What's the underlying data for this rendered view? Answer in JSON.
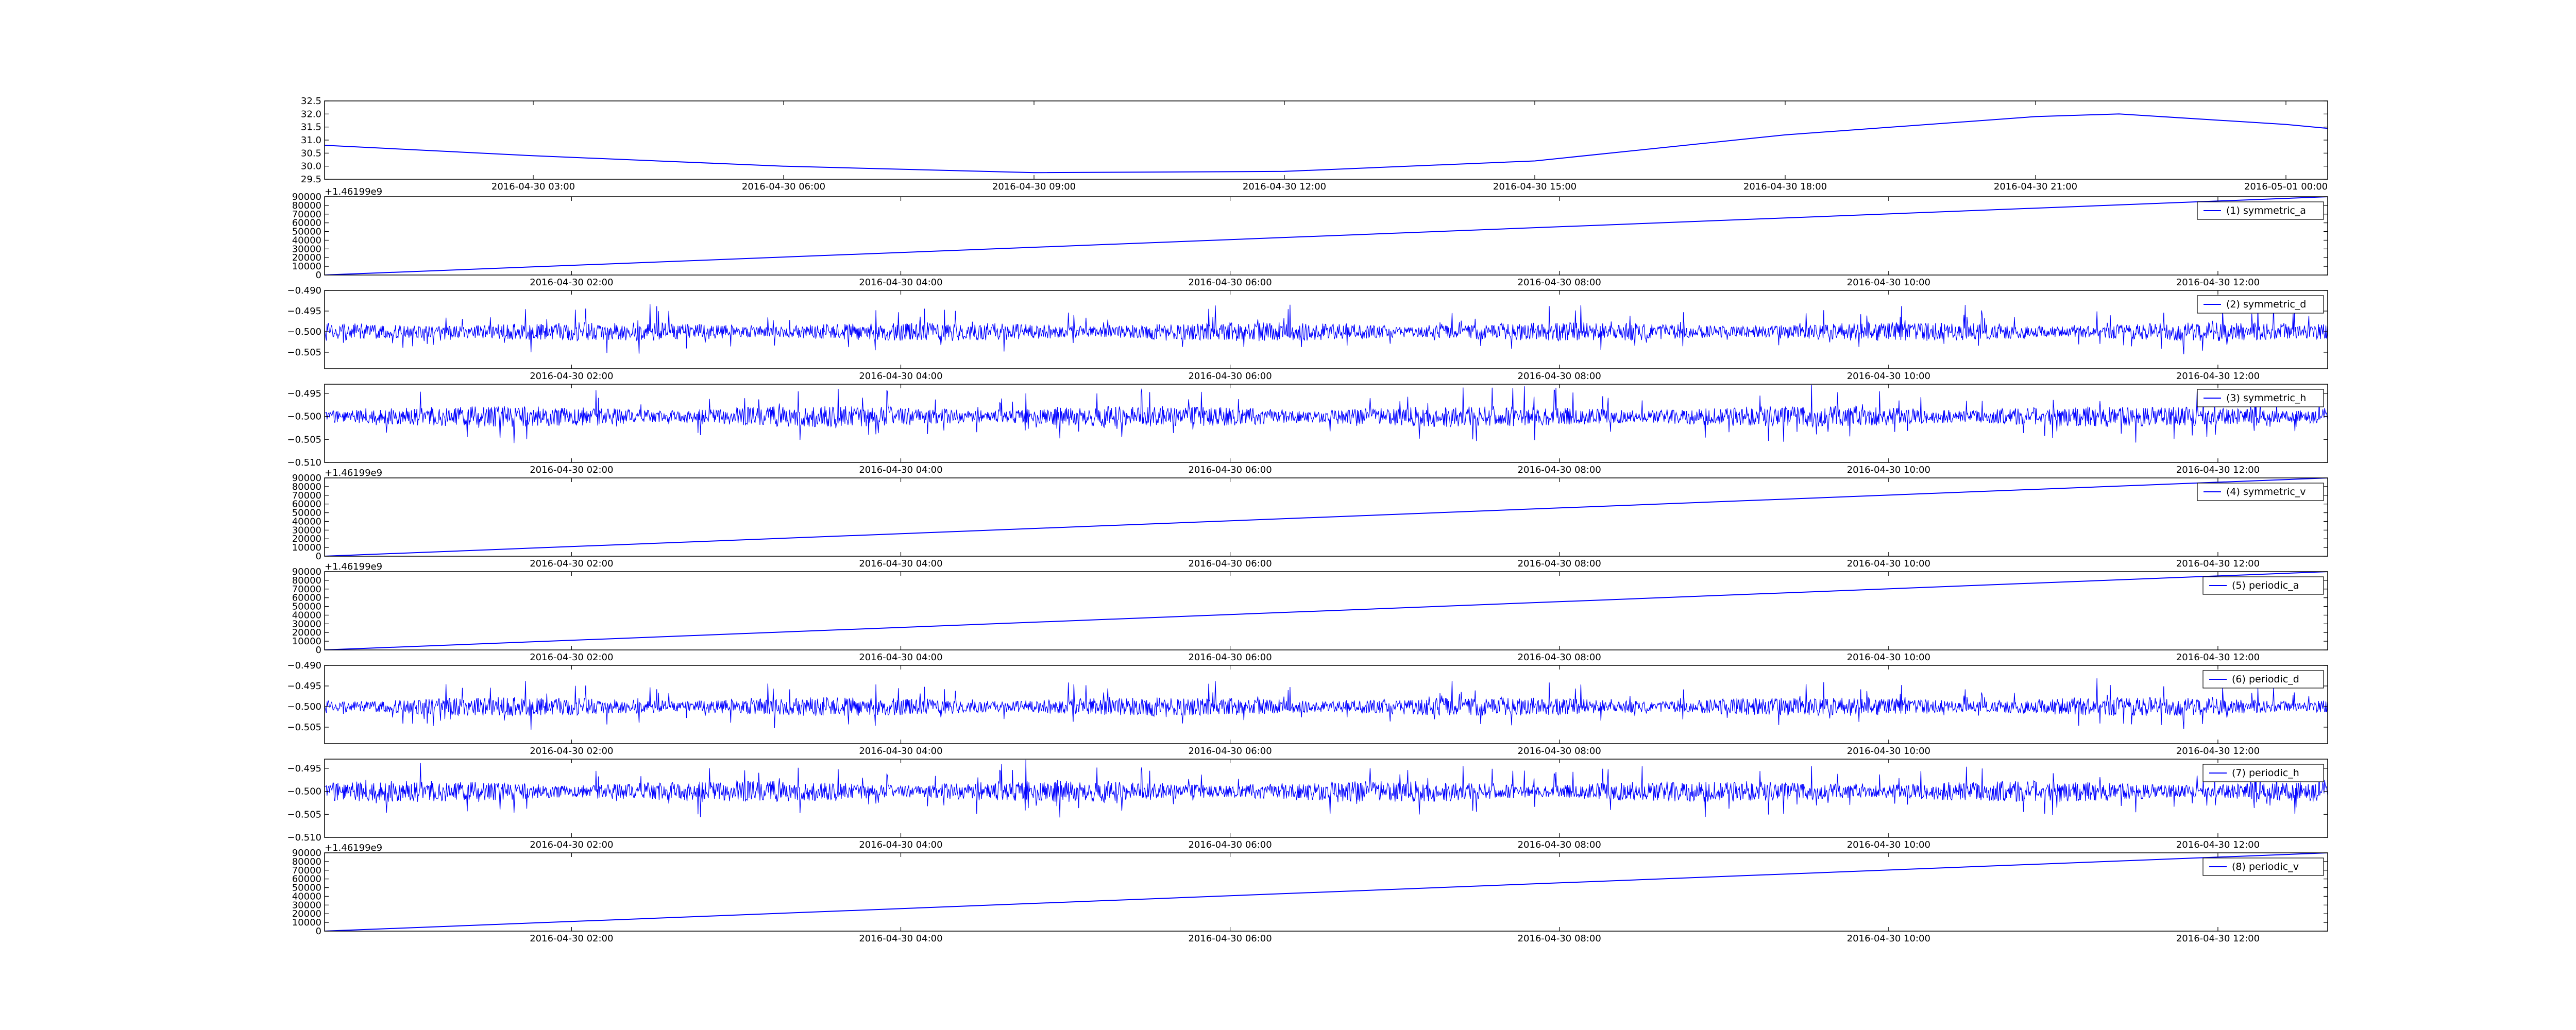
{
  "figure": {
    "background": "#ffffff",
    "line_color": "#0000ff",
    "axis_color": "#000000"
  },
  "chart_data": [
    {
      "type": "line",
      "series": [
        {
          "values": [
            30.8,
            30.4,
            30.0,
            29.75,
            29.8,
            30.2,
            31.2,
            31.9,
            32.0,
            31.6,
            31.45
          ]
        }
      ],
      "x": [
        "2016-04-30 00:30",
        "2016-04-30 03:00",
        "2016-04-30 06:00",
        "2016-04-30 09:00",
        "2016-04-30 12:00",
        "2016-04-30 15:00",
        "2016-04-30 18:00",
        "2016-04-30 21:00",
        "2016-04-30 22:00",
        "2016-05-01 00:00",
        "2016-05-01 00:30"
      ],
      "xlim": [
        "2016-04-30 00:30",
        "2016-05-01 00:30"
      ],
      "xticks": [
        "2016-04-30 03:00",
        "2016-04-30 06:00",
        "2016-04-30 09:00",
        "2016-04-30 12:00",
        "2016-04-30 15:00",
        "2016-04-30 18:00",
        "2016-04-30 21:00",
        "2016-05-01 00:00"
      ],
      "ylim": [
        29.5,
        32.5
      ],
      "yticks": [
        "29.5",
        "30.0",
        "30.5",
        "31.0",
        "31.5",
        "32.0",
        "32.5"
      ],
      "grid": false
    },
    {
      "type": "line",
      "offset_label": "+1.46199e9",
      "series": [
        {
          "name": "(1) symmetric_a",
          "x": [
            "2016-04-30 00:30",
            "2016-04-30 12:40"
          ],
          "values": [
            0,
            90000
          ]
        }
      ],
      "xlim": [
        "2016-04-30 00:30",
        "2016-04-30 12:40"
      ],
      "xticks": [
        "2016-04-30 02:00",
        "2016-04-30 04:00",
        "2016-04-30 06:00",
        "2016-04-30 08:00",
        "2016-04-30 10:00",
        "2016-04-30 12:00"
      ],
      "ylim": [
        0,
        90000
      ],
      "yticks": [
        "0",
        "10000",
        "20000",
        "30000",
        "40000",
        "50000",
        "60000",
        "70000",
        "80000",
        "90000"
      ],
      "legend": "top-right",
      "grid": false
    },
    {
      "type": "line",
      "series": [
        {
          "name": "(2) symmetric_d",
          "mean": -0.5,
          "amplitude": 0.0065
        }
      ],
      "xlim": [
        "2016-04-30 00:30",
        "2016-04-30 12:40"
      ],
      "xticks": [
        "2016-04-30 02:00",
        "2016-04-30 04:00",
        "2016-04-30 06:00",
        "2016-04-30 08:00",
        "2016-04-30 10:00",
        "2016-04-30 12:00"
      ],
      "ylim": [
        -0.509,
        -0.49
      ],
      "yticks": [
        "−0.505",
        "−0.500",
        "−0.495",
        "−0.490"
      ],
      "legend": "top-right",
      "grid": false
    },
    {
      "type": "line",
      "series": [
        {
          "name": "(3) symmetric_h",
          "mean": -0.5,
          "amplitude": 0.0065
        }
      ],
      "xlim": [
        "2016-04-30 00:30",
        "2016-04-30 12:40"
      ],
      "xticks": [
        "2016-04-30 02:00",
        "2016-04-30 04:00",
        "2016-04-30 06:00",
        "2016-04-30 08:00",
        "2016-04-30 10:00",
        "2016-04-30 12:00"
      ],
      "ylim": [
        -0.51,
        -0.493
      ],
      "yticks": [
        "−0.510",
        "−0.505",
        "−0.500",
        "−0.495"
      ],
      "legend": "top-right",
      "grid": false
    },
    {
      "type": "line",
      "offset_label": "+1.46199e9",
      "series": [
        {
          "name": "(4) symmetric_v",
          "x": [
            "2016-04-30 00:30",
            "2016-04-30 12:40"
          ],
          "values": [
            0,
            90000
          ]
        }
      ],
      "xlim": [
        "2016-04-30 00:30",
        "2016-04-30 12:40"
      ],
      "xticks": [
        "2016-04-30 02:00",
        "2016-04-30 04:00",
        "2016-04-30 06:00",
        "2016-04-30 08:00",
        "2016-04-30 10:00",
        "2016-04-30 12:00"
      ],
      "ylim": [
        0,
        90000
      ],
      "yticks": [
        "0",
        "10000",
        "20000",
        "30000",
        "40000",
        "50000",
        "60000",
        "70000",
        "80000",
        "90000"
      ],
      "legend": "top-right",
      "grid": false
    },
    {
      "type": "line",
      "offset_label": "+1.46199e9",
      "series": [
        {
          "name": "(5) periodic_a",
          "x": [
            "2016-04-30 00:30",
            "2016-04-30 12:40"
          ],
          "values": [
            0,
            90000
          ]
        }
      ],
      "xlim": [
        "2016-04-30 00:30",
        "2016-04-30 12:40"
      ],
      "xticks": [
        "2016-04-30 02:00",
        "2016-04-30 04:00",
        "2016-04-30 06:00",
        "2016-04-30 08:00",
        "2016-04-30 10:00",
        "2016-04-30 12:00"
      ],
      "ylim": [
        0,
        90000
      ],
      "yticks": [
        "0",
        "10000",
        "20000",
        "30000",
        "40000",
        "50000",
        "60000",
        "70000",
        "80000",
        "90000"
      ],
      "legend": "top-right",
      "grid": false
    },
    {
      "type": "line",
      "series": [
        {
          "name": "(6) periodic_d",
          "mean": -0.5,
          "amplitude": 0.0065
        }
      ],
      "xlim": [
        "2016-04-30 00:30",
        "2016-04-30 12:40"
      ],
      "xticks": [
        "2016-04-30 02:00",
        "2016-04-30 04:00",
        "2016-04-30 06:00",
        "2016-04-30 08:00",
        "2016-04-30 10:00",
        "2016-04-30 12:00"
      ],
      "ylim": [
        -0.509,
        -0.49
      ],
      "yticks": [
        "−0.505",
        "−0.500",
        "−0.495",
        "−0.490"
      ],
      "legend": "top-right",
      "grid": false
    },
    {
      "type": "line",
      "series": [
        {
          "name": "(7) periodic_h",
          "mean": -0.5,
          "amplitude": 0.0065
        }
      ],
      "xlim": [
        "2016-04-30 00:30",
        "2016-04-30 12:40"
      ],
      "xticks": [
        "2016-04-30 02:00",
        "2016-04-30 04:00",
        "2016-04-30 06:00",
        "2016-04-30 08:00",
        "2016-04-30 10:00",
        "2016-04-30 12:00"
      ],
      "ylim": [
        -0.51,
        -0.493
      ],
      "yticks": [
        "−0.510",
        "−0.505",
        "−0.500",
        "−0.495"
      ],
      "legend": "top-right",
      "grid": false
    },
    {
      "type": "line",
      "offset_label": "+1.46199e9",
      "series": [
        {
          "name": "(8) periodic_v",
          "x": [
            "2016-04-30 00:30",
            "2016-04-30 12:40"
          ],
          "values": [
            0,
            90000
          ]
        }
      ],
      "xlim": [
        "2016-04-30 00:30",
        "2016-04-30 12:40"
      ],
      "xticks": [
        "2016-04-30 02:00",
        "2016-04-30 04:00",
        "2016-04-30 06:00",
        "2016-04-30 08:00",
        "2016-04-30 10:00",
        "2016-04-30 12:00"
      ],
      "ylim": [
        0,
        90000
      ],
      "yticks": [
        "0",
        "10000",
        "20000",
        "30000",
        "40000",
        "50000",
        "60000",
        "70000",
        "80000",
        "90000"
      ],
      "legend": "top-right",
      "grid": false
    }
  ]
}
